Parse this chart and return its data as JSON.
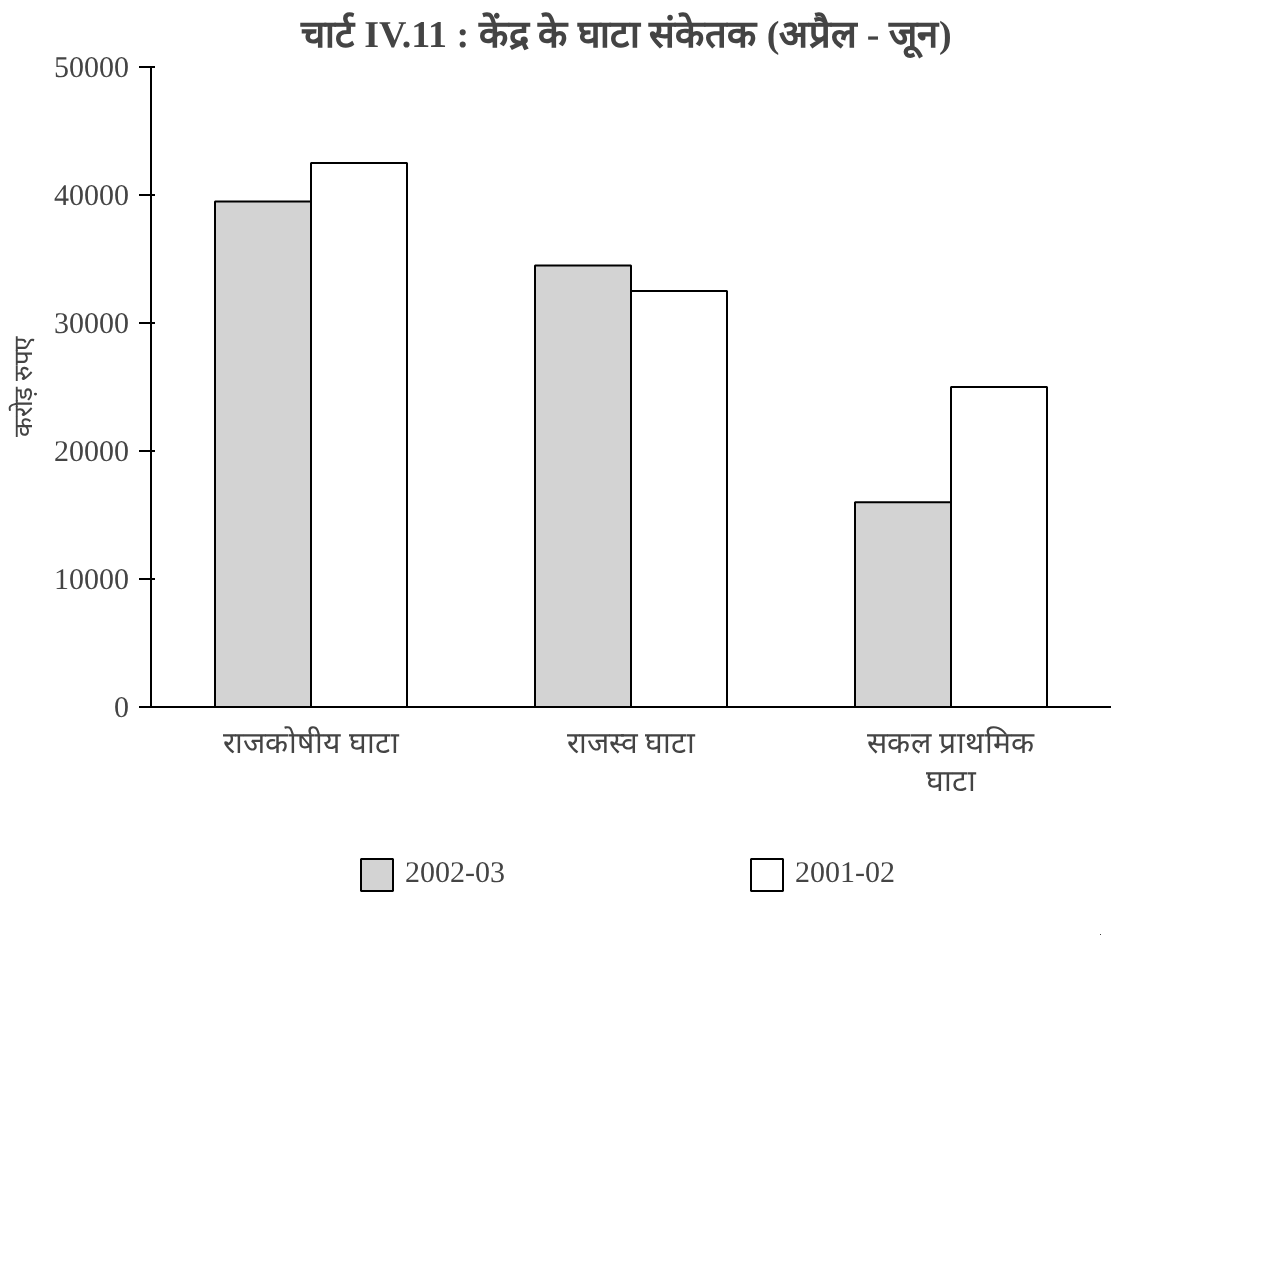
{
  "chart_data": {
    "type": "bar",
    "title": "चार्ट IV.11 : केंद्र  के घाटा संकेतक (अप्रैल - जून)",
    "ylabel": "करोड़ रुपए",
    "categories": [
      "राजकोषीय घाटा",
      "राजस्व घाटा",
      "सकल प्राथमिक घाटा"
    ],
    "series": [
      {
        "name": "2002-03",
        "color": "#d3d3d3",
        "values": [
          39500,
          34500,
          16000
        ]
      },
      {
        "name": "2001-02",
        "color": "#ffffff",
        "values": [
          42500,
          32500,
          25000
        ]
      }
    ],
    "ylim": [
      0,
      50000
    ],
    "yticks": [
      0,
      10000,
      20000,
      30000,
      40000,
      50000
    ],
    "grid": false,
    "legend": "bottom"
  }
}
